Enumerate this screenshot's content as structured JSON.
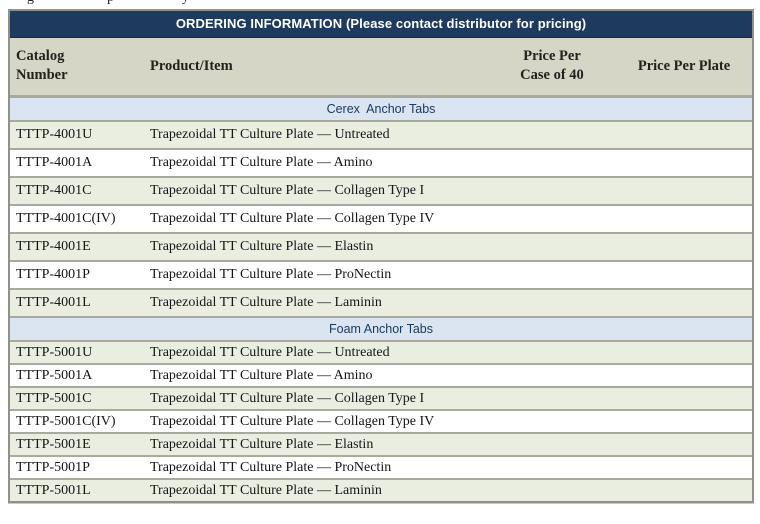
{
  "top_fragments": [
    "g",
    "p",
    "y"
  ],
  "table": {
    "title": "ORDERING INFORMATION (Please contact distributor for pricing)",
    "headers": {
      "catalog": "Catalog\nNumber",
      "product": "Product/Item",
      "price_case": "Price Per\nCase of 40",
      "price_plate": "Price Per Plate"
    },
    "sections": [
      {
        "label": "Cerex  Anchor Tabs",
        "rows": [
          {
            "catalog": "TTTP-4001U",
            "product": "Trapezoidal TT Culture Plate — Untreated",
            "price_case": "",
            "price_plate": ""
          },
          {
            "catalog": "TTTP-4001A",
            "product": "Trapezoidal TT Culture Plate — Amino",
            "price_case": "",
            "price_plate": ""
          },
          {
            "catalog": "TTTP-4001C",
            "product": "Trapezoidal TT Culture Plate — Collagen Type I",
            "price_case": "",
            "price_plate": ""
          },
          {
            "catalog": "TTTP-4001C(IV)",
            "product": "Trapezoidal TT Culture Plate — Collagen Type IV",
            "price_case": "",
            "price_plate": ""
          },
          {
            "catalog": "TTTP-4001E",
            "product": "Trapezoidal TT Culture Plate — Elastin",
            "price_case": "",
            "price_plate": ""
          },
          {
            "catalog": "TTTP-4001P",
            "product": "Trapezoidal TT Culture Plate — ProNectin",
            "price_case": "",
            "price_plate": ""
          },
          {
            "catalog": "TTTP-4001L",
            "product": "Trapezoidal TT Culture Plate — Laminin",
            "price_case": "",
            "price_plate": ""
          }
        ]
      },
      {
        "label": "Foam Anchor Tabs",
        "rows": [
          {
            "catalog": "TTTP-5001U",
            "product": "Trapezoidal TT Culture Plate — Untreated",
            "price_case": "",
            "price_plate": ""
          },
          {
            "catalog": "TTTP-5001A",
            "product": "Trapezoidal TT Culture Plate — Amino",
            "price_case": "",
            "price_plate": ""
          },
          {
            "catalog": "TTTP-5001C",
            "product": "Trapezoidal TT Culture Plate — Collagen Type I",
            "price_case": "",
            "price_plate": ""
          },
          {
            "catalog": "TTTP-5001C(IV)",
            "product": "Trapezoidal TT Culture Plate — Collagen Type IV",
            "price_case": "",
            "price_plate": ""
          },
          {
            "catalog": "TTTP-5001E",
            "product": "Trapezoidal TT Culture Plate — Elastin",
            "price_case": "",
            "price_plate": ""
          },
          {
            "catalog": "TTTP-5001P",
            "product": "Trapezoidal TT Culture Plate — ProNectin",
            "price_case": "",
            "price_plate": ""
          },
          {
            "catalog": "TTTP-5001L",
            "product": "Trapezoidal TT Culture Plate — Laminin",
            "price_case": "",
            "price_plate": ""
          }
        ]
      }
    ]
  },
  "colors": {
    "title_bg": "#1e3a5e",
    "title_text": "#ffffff",
    "column_header_bg": "#d5d6c5",
    "section_header_bg": "#dbe5f1",
    "section_header_text": "#1b3a61",
    "row_shaded_bg": "#eaeee1",
    "row_plain_bg": "#ffffff",
    "separator": "#a7aa9d",
    "outer_border": "#8f9288",
    "body_text": "#15151a"
  }
}
